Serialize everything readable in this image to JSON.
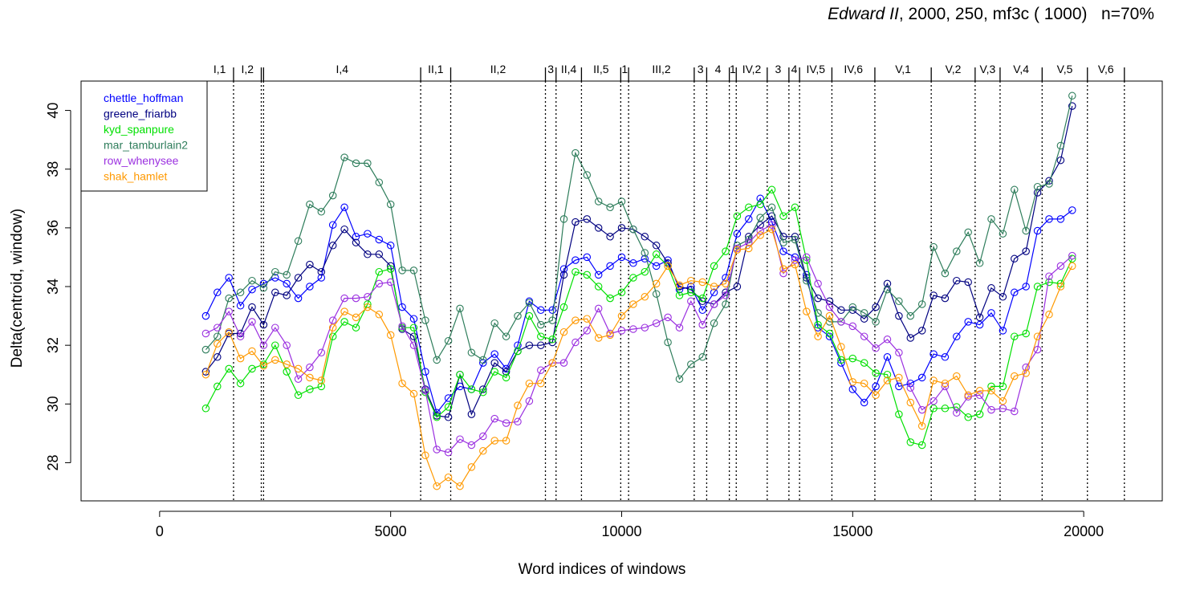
{
  "title": {
    "italic": "Edward II",
    "rest": ", 2000, 250, mf3c ( 1000)",
    "n_label": "n=70%"
  },
  "chart_data": {
    "type": "line",
    "xlabel": "Word indices of windows",
    "ylabel": "Delta(centroid, window)",
    "xlim": [
      -1700,
      21700
    ],
    "ylim": [
      26.7,
      41.0
    ],
    "x_ticks": [
      0,
      5000,
      10000,
      15000,
      20000
    ],
    "x_tick_labels": [
      "0",
      "5000",
      "10000",
      "15000",
      "20000"
    ],
    "y_ticks": [
      28,
      30,
      32,
      34,
      36,
      38,
      40
    ],
    "y_tick_labels": [
      "28",
      "30",
      "32",
      "34",
      "36",
      "38",
      "40"
    ],
    "grid": false,
    "legend_position": "top-left",
    "x": [
      1000,
      1250,
      1500,
      1750,
      2000,
      2250,
      2500,
      2750,
      3000,
      3250,
      3500,
      3750,
      4000,
      4250,
      4500,
      4750,
      5000,
      5250,
      5500,
      5750,
      6000,
      6250,
      6500,
      6750,
      7000,
      7250,
      7500,
      7750,
      8000,
      8250,
      8500,
      8750,
      9000,
      9250,
      9500,
      9750,
      10000,
      10250,
      10500,
      10750,
      11000,
      11250,
      11500,
      11750,
      12000,
      12250,
      12500,
      12750,
      13000,
      13250,
      13500,
      13750,
      14000,
      14250,
      14500,
      14750,
      15000,
      15250,
      15500,
      15750,
      16000,
      16250,
      16500,
      16750,
      17000,
      17250,
      17500,
      17750,
      18000,
      18250,
      18500,
      18750,
      19000,
      19250,
      19500,
      19750
    ],
    "series": [
      {
        "name": "chettle_hoffman",
        "color": "#0000ff",
        "values": [
          33.0,
          33.8,
          34.3,
          33.35,
          33.9,
          34.1,
          34.3,
          34.1,
          33.6,
          34.0,
          34.3,
          36.1,
          36.7,
          35.7,
          35.8,
          35.6,
          35.4,
          33.3,
          32.9,
          31.1,
          29.7,
          30.2,
          30.6,
          30.5,
          31.4,
          31.7,
          31.2,
          32.0,
          33.5,
          33.2,
          33.2,
          34.6,
          34.9,
          35.0,
          34.4,
          34.7,
          35.0,
          34.8,
          34.95,
          34.7,
          34.9,
          33.9,
          34.0,
          33.2,
          33.8,
          34.3,
          35.8,
          36.3,
          37.0,
          36.2,
          35.2,
          35.0,
          34.4,
          32.6,
          32.3,
          31.4,
          30.5,
          30.05,
          30.6,
          31.6,
          30.6,
          30.7,
          30.9,
          31.7,
          31.6,
          32.3,
          32.8,
          32.7,
          33.1,
          32.5,
          33.8,
          34.0,
          35.9,
          36.3,
          36.3,
          36.6
        ]
      },
      {
        "name": "greene_friarbb",
        "color": "#000080",
        "values": [
          31.1,
          31.6,
          32.4,
          32.4,
          33.3,
          32.7,
          33.8,
          33.7,
          34.3,
          34.75,
          34.5,
          35.4,
          35.95,
          35.5,
          35.1,
          35.1,
          34.7,
          32.55,
          32.3,
          30.5,
          29.6,
          29.55,
          31.0,
          29.65,
          30.5,
          31.4,
          31.1,
          31.8,
          32.0,
          32.0,
          32.1,
          34.4,
          36.2,
          36.3,
          36.0,
          35.7,
          36.0,
          35.95,
          35.7,
          35.4,
          34.8,
          34.0,
          33.9,
          33.5,
          33.4,
          33.8,
          34.0,
          35.7,
          36.1,
          36.4,
          35.7,
          35.7,
          34.3,
          33.6,
          33.5,
          33.2,
          33.2,
          32.9,
          33.3,
          34.1,
          33.0,
          32.25,
          32.5,
          33.7,
          33.6,
          34.2,
          34.15,
          32.95,
          33.95,
          33.65,
          34.95,
          35.2,
          37.2,
          37.6,
          38.3,
          40.15
        ]
      },
      {
        "name": "kyd_spanpure",
        "color": "#00e000",
        "values": [
          29.85,
          30.6,
          31.2,
          30.7,
          31.2,
          31.35,
          32.0,
          31.1,
          30.3,
          30.5,
          30.6,
          32.3,
          32.8,
          32.6,
          33.4,
          34.5,
          34.6,
          32.6,
          32.6,
          30.4,
          29.55,
          29.9,
          31.0,
          30.5,
          30.4,
          31.1,
          30.9,
          31.8,
          33.0,
          32.3,
          32.2,
          33.3,
          34.5,
          34.4,
          34.0,
          33.6,
          33.8,
          34.3,
          34.5,
          35.1,
          34.7,
          33.7,
          33.8,
          33.6,
          34.7,
          35.2,
          36.4,
          36.7,
          36.8,
          37.3,
          36.4,
          36.7,
          34.9,
          32.7,
          32.4,
          31.5,
          31.55,
          31.4,
          31.05,
          31.0,
          29.65,
          28.7,
          28.6,
          29.85,
          29.85,
          29.9,
          29.55,
          29.65,
          30.6,
          30.6,
          32.3,
          32.4,
          34.0,
          34.15,
          34.1,
          34.95
        ]
      },
      {
        "name": "mar_tamburlain2",
        "color": "#2e7d5b",
        "values": [
          31.85,
          32.3,
          33.6,
          33.8,
          34.2,
          33.95,
          34.5,
          34.4,
          35.55,
          36.8,
          36.55,
          37.1,
          38.4,
          38.2,
          38.2,
          37.55,
          36.8,
          34.55,
          34.55,
          32.85,
          31.5,
          32.15,
          33.25,
          31.75,
          31.5,
          32.75,
          32.3,
          33.0,
          33.45,
          32.7,
          32.85,
          36.3,
          38.55,
          37.8,
          36.9,
          36.7,
          36.9,
          35.95,
          35.15,
          33.75,
          32.1,
          30.85,
          31.35,
          31.6,
          32.75,
          33.4,
          35.4,
          35.6,
          36.35,
          36.7,
          35.5,
          35.6,
          34.2,
          33.1,
          32.8,
          32.8,
          33.3,
          33.1,
          32.8,
          33.9,
          33.5,
          33.0,
          33.4,
          35.35,
          34.45,
          35.2,
          35.85,
          34.8,
          36.3,
          35.8,
          37.3,
          35.9,
          37.4,
          37.5,
          38.8,
          40.5
        ]
      },
      {
        "name": "row_whenysee",
        "color": "#9b30e0",
        "values": [
          32.4,
          32.6,
          33.15,
          32.3,
          32.8,
          32.0,
          32.6,
          32.0,
          30.85,
          31.25,
          31.75,
          32.85,
          33.6,
          33.6,
          33.65,
          34.1,
          34.15,
          32.65,
          32.0,
          30.45,
          28.45,
          28.35,
          28.8,
          28.6,
          28.9,
          29.5,
          29.35,
          29.4,
          30.1,
          31.15,
          31.4,
          31.4,
          32.1,
          32.5,
          33.25,
          32.4,
          32.5,
          32.55,
          32.6,
          32.75,
          32.95,
          32.6,
          33.5,
          32.7,
          33.4,
          33.7,
          35.3,
          35.5,
          35.9,
          36.1,
          34.45,
          34.9,
          35.0,
          34.1,
          33.3,
          32.8,
          32.65,
          32.3,
          31.9,
          32.2,
          31.75,
          30.55,
          29.8,
          30.1,
          30.6,
          29.7,
          30.25,
          30.3,
          29.8,
          29.85,
          29.75,
          31.25,
          31.85,
          34.35,
          34.7,
          35.05
        ]
      },
      {
        "name": "shak_hamlet",
        "color": "#ff9900",
        "values": [
          31.0,
          32.05,
          32.45,
          31.55,
          31.8,
          31.3,
          31.5,
          31.35,
          31.2,
          30.9,
          30.8,
          32.6,
          33.15,
          32.95,
          33.3,
          33.05,
          32.35,
          30.7,
          30.35,
          28.25,
          27.2,
          27.5,
          27.2,
          27.85,
          28.4,
          28.75,
          28.75,
          29.95,
          30.7,
          30.7,
          31.4,
          32.45,
          32.85,
          32.9,
          32.25,
          32.35,
          33.0,
          33.4,
          33.65,
          34.1,
          34.7,
          34.05,
          34.2,
          34.15,
          34.0,
          34.1,
          35.25,
          35.3,
          35.75,
          35.95,
          34.6,
          34.75,
          33.15,
          32.3,
          33.0,
          31.95,
          30.75,
          30.7,
          30.3,
          30.8,
          30.9,
          30.05,
          29.25,
          30.8,
          30.7,
          30.95,
          30.3,
          30.45,
          30.45,
          30.1,
          30.95,
          31.05,
          32.3,
          33.05,
          34.0,
          34.7
        ]
      }
    ],
    "scene_markers": [
      {
        "x": 1600,
        "label": "I,1"
      },
      {
        "x": 2200,
        "label": "I,2"
      },
      {
        "x": 2250,
        "label": ""
      },
      {
        "x": 5650,
        "label": "I,4"
      },
      {
        "x": 6300,
        "label": "II,1"
      },
      {
        "x": 8350,
        "label": "II,2"
      },
      {
        "x": 8580,
        "label": "3"
      },
      {
        "x": 9130,
        "label": "II,4"
      },
      {
        "x": 9980,
        "label": "II,5"
      },
      {
        "x": 10150,
        "label": "1"
      },
      {
        "x": 11570,
        "label": "III,2"
      },
      {
        "x": 11840,
        "label": "3"
      },
      {
        "x": 12330,
        "label": "4"
      },
      {
        "x": 12480,
        "label": "1"
      },
      {
        "x": 13150,
        "label": "IV,2"
      },
      {
        "x": 13620,
        "label": "3"
      },
      {
        "x": 13850,
        "label": "4"
      },
      {
        "x": 14550,
        "label": "IV,5"
      },
      {
        "x": 15480,
        "label": "IV,6"
      },
      {
        "x": 16700,
        "label": "V,1"
      },
      {
        "x": 17650,
        "label": "V,2"
      },
      {
        "x": 18190,
        "label": "V,3"
      },
      {
        "x": 19100,
        "label": "V,4"
      },
      {
        "x": 20080,
        "label": "V,5"
      },
      {
        "x": 20880,
        "label": "V,6"
      }
    ]
  }
}
